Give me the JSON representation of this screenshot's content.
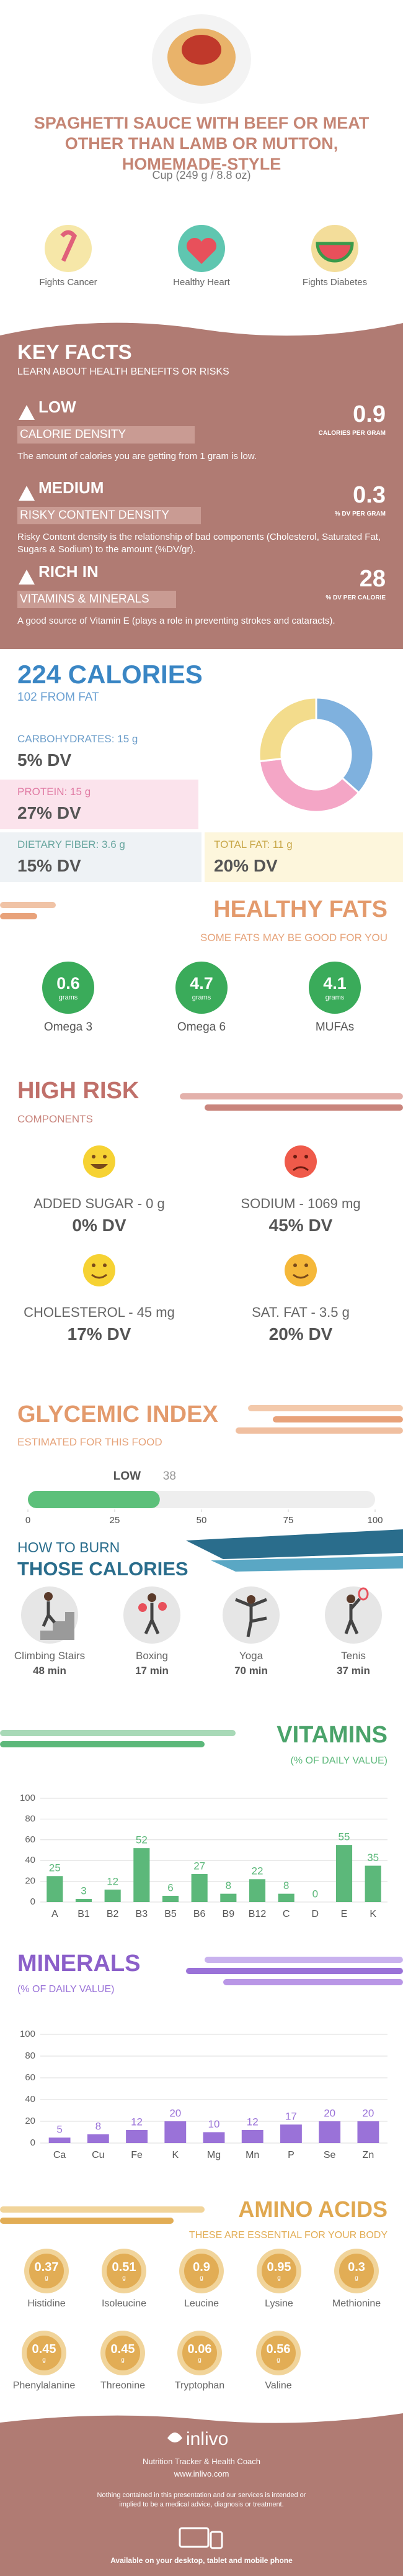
{
  "header": {
    "title": "SPAGHETTI SAUCE WITH BEEF OR MEAT OTHER THAN LAMB OR MUTTON, HOMEMADE-STYLE",
    "serving": "Cup (249 g / 8.8 oz)",
    "badges": [
      "Fights Cancer",
      "Healthy Heart",
      "Fights Diabetes"
    ]
  },
  "key_facts": {
    "title": "KEY FACTS",
    "subtitle": "LEARN ABOUT HEALTH BENEFITS OR RISKS",
    "items": [
      {
        "level": "LOW",
        "label": "CALORIE DENSITY",
        "value": 0.9,
        "unit": "CALORIES PER GRAM",
        "text": "The amount of calories you are getting from 1 gram is low."
      },
      {
        "level": "MEDIUM",
        "label": "RISKY CONTENT DENSITY",
        "value": 0.3,
        "unit": "% DV PER GRAM",
        "text": "Risky Content density is the relationship of bad components (Cholesterol, Saturated Fat, Sugars & Sodium) to the amount (%DV/gr)."
      },
      {
        "level": "RICH IN",
        "label": "VITAMINS & MINERALS",
        "value": 28,
        "unit": "% DV PER CALORIE",
        "text": "A good source of Vitamin E (plays a role in preventing strokes and cataracts)."
      }
    ]
  },
  "calories": {
    "title": "224 CALORIES",
    "subtitle": "102 FROM FAT",
    "items": [
      {
        "name": "CARBOHYDRATES:",
        "grams": 15,
        "unit": "g",
        "dv": "5% DV",
        "color": "#7fb1de"
      },
      {
        "name": "PROTEIN:",
        "grams": 15,
        "unit": "g",
        "dv": "27% DV",
        "color": "#f4a6c6"
      },
      {
        "name": "DIETARY FIBER:",
        "grams": 3.6,
        "unit": "g",
        "dv": "15% DV"
      },
      {
        "name": "TOTAL FAT:",
        "grams": 11,
        "unit": "g",
        "dv": "20% DV",
        "color": "#f3dc8c"
      }
    ]
  },
  "healthy_fats": {
    "title": "HEALTHY FATS",
    "subtitle": "SOME FATS MAY BE GOOD FOR YOU",
    "unit": "grams",
    "items": [
      {
        "value": 0.6,
        "name": "Omega 3"
      },
      {
        "value": 4.7,
        "name": "Omega 6"
      },
      {
        "value": 4.1,
        "name": "MUFAs"
      }
    ]
  },
  "high_risk": {
    "title": "HIGH RISK",
    "subtitle": "COMPONENTS",
    "items": [
      {
        "name": "ADDED SUGAR - 0 g",
        "dv": "0% DV"
      },
      {
        "name": "SODIUM - 1069 mg",
        "dv": "45% DV"
      },
      {
        "name": "CHOLESTEROL - 45 mg",
        "dv": "17% DV"
      },
      {
        "name": "SAT. FAT - 3.5 g",
        "dv": "20% DV"
      }
    ]
  },
  "glycemic": {
    "title": "GLYCEMIC INDEX",
    "subtitle": "ESTIMATED FOR THIS FOOD",
    "level": "LOW",
    "value": 38,
    "xlim": [
      0,
      100
    ],
    "xticks": [
      0,
      25,
      50,
      75,
      100
    ],
    "color": "#5cc07a"
  },
  "burn": {
    "title": "HOW TO BURN",
    "subtitle": "THOSE CALORIES",
    "items": [
      {
        "name": "Climbing Stairs",
        "time": "48 min"
      },
      {
        "name": "Boxing",
        "time": "17 min"
      },
      {
        "name": "Yoga",
        "time": "70 min"
      },
      {
        "name": "Tenis",
        "time": "37 min"
      }
    ]
  },
  "chart_data": [
    {
      "type": "bar",
      "title": "VITAMINS",
      "subtitle": "(% OF DAILY VALUE)",
      "categories": [
        "A",
        "B1",
        "B2",
        "B3",
        "B5",
        "B6",
        "B9",
        "B12",
        "C",
        "D",
        "E",
        "K"
      ],
      "values": [
        25,
        3,
        12,
        52,
        6,
        27,
        8,
        22,
        8,
        0,
        55,
        35
      ],
      "color": "#5cb87a",
      "ylim": [
        0,
        100
      ],
      "yticks": [
        0,
        20,
        40,
        60,
        80,
        100
      ],
      "grid": true
    },
    {
      "type": "bar",
      "title": "MINERALS",
      "subtitle": "(% OF DAILY VALUE)",
      "categories": [
        "Ca",
        "Cu",
        "Fe",
        "K",
        "Mg",
        "Mn",
        "P",
        "Se",
        "Zn"
      ],
      "values": [
        5,
        8,
        12,
        20,
        10,
        12,
        17,
        20,
        20
      ],
      "color": "#9a72d8",
      "ylim": [
        0,
        100
      ],
      "yticks": [
        0,
        20,
        40,
        60,
        80,
        100
      ],
      "grid": true
    }
  ],
  "amino_acids": {
    "title": "AMINO ACIDS",
    "subtitle": "THESE ARE ESSENTIAL FOR YOUR BODY",
    "unit": "g",
    "items": [
      {
        "name": "Histidine",
        "value": 0.37
      },
      {
        "name": "Isoleucine",
        "value": 0.51
      },
      {
        "name": "Leucine",
        "value": 0.9
      },
      {
        "name": "Lysine",
        "value": 0.95
      },
      {
        "name": "Methionine",
        "value": 0.3
      },
      {
        "name": "Phenylalanine",
        "value": 0.45
      },
      {
        "name": "Threonine",
        "value": 0.45
      },
      {
        "name": "Tryptophan",
        "value": 0.06
      },
      {
        "name": "Valine",
        "value": 0.56
      }
    ]
  },
  "footer": {
    "brand": "inlivo",
    "tagline": "Nutrition Tracker & Health Coach",
    "url": "www.inlivo.com",
    "disclaimer": "Nothing contained in this presentation and our services is intended or implied to be a medical advice, diagnosis or treatment.",
    "available": "Available on your desktop, tablet and mobile phone"
  }
}
